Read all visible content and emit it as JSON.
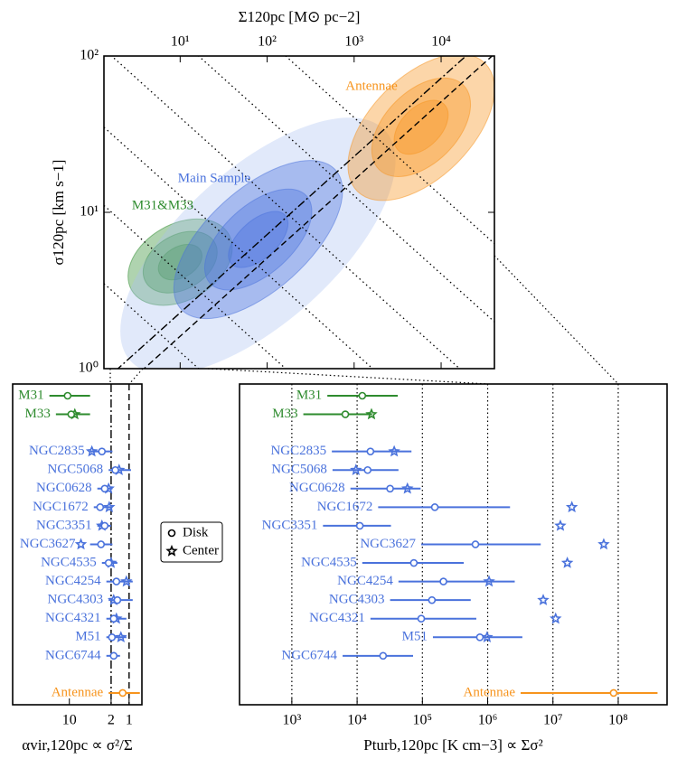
{
  "chart_data": [
    {
      "type": "contour",
      "xlabel": "Σ120pc [M⊙ pc−2]",
      "ylabel": "σ120pc [km s−1]",
      "x_axis_position": "top",
      "xscale": "log",
      "yscale": "log",
      "xlim": [
        1.33,
        41000
      ],
      "ylim": [
        1,
        100
      ],
      "xticks": [
        {
          "value": 10,
          "label": "10¹"
        },
        {
          "value": 100,
          "label": "10²"
        },
        {
          "value": 1000,
          "label": "10³"
        },
        {
          "value": 10000,
          "label": "10⁴"
        }
      ],
      "yticks": [
        {
          "value": 1,
          "label": "10⁰"
        },
        {
          "value": 10,
          "label": "10¹"
        },
        {
          "value": 100,
          "label": "10²"
        }
      ],
      "regions": [
        {
          "color": "#2e8b2e",
          "x": 10,
          "y": 4.8
        },
        {
          "color": "#4a72dc",
          "x": 79,
          "y": 6.7
        },
        {
          "color": "#f7941d",
          "x": 5900,
          "y": 35
        }
      ],
      "annotations": [
        {
          "text": "Antennae",
          "color": "#f7941d"
        },
        {
          "text": "Main Sample",
          "color": "#4a72dc"
        },
        {
          "text": "M31&M33",
          "color": "#2e8b2e"
        }
      ]
    },
    {
      "type": "errorbar",
      "xlabel": "αvir,120pc ∝ σ²/Σ",
      "xscale": "log",
      "xlim": [
        89,
        0.61
      ],
      "xticks": [
        10,
        2,
        1
      ],
      "legend": "right",
      "categories": [
        "M31",
        "M33",
        null,
        "NGC2835",
        "NGC5068",
        "NGC0628",
        "NGC1672",
        "NGC3351",
        "NGC3627",
        "NGC4535",
        "NGC4254",
        "NGC4303",
        "NGC4321",
        "M51",
        "NGC6744",
        null,
        "Antennae"
      ],
      "category_colors": [
        "#2e8b2e",
        "#2e8b2e",
        null,
        "#4a72dc",
        "#4a72dc",
        "#4a72dc",
        "#4a72dc",
        "#4a72dc",
        "#4a72dc",
        "#4a72dc",
        "#4a72dc",
        "#4a72dc",
        "#4a72dc",
        "#4a72dc",
        "#4a72dc",
        null,
        "#f7941d"
      ],
      "series": [
        {
          "name": "Disk",
          "marker": "circle",
          "values": [
            10.7,
            9.3,
            null,
            2.85,
            1.7,
            2.56,
            3.05,
            2.56,
            2.95,
            2.2,
            1.63,
            1.57,
            1.81,
            1.94,
            1.81,
            null,
            1.28
          ],
          "err_low": [
            4.5,
            4.5,
            null,
            1.9,
            0.93,
            1.9,
            1.9,
            2.0,
            1.9,
            1.57,
            0.87,
            0.87,
            1.11,
            1.11,
            1.42,
            null,
            0.66
          ],
          "err_high": [
            21.6,
            16.8,
            null,
            4.5,
            2.2,
            3.4,
            3.9,
            3.4,
            4.5,
            2.85,
            2.4,
            2.2,
            2.4,
            2.4,
            2.4,
            null,
            2.2
          ]
        },
        {
          "name": "Center",
          "marker": "star",
          "values": [
            null,
            8.1,
            null,
            4.2,
            1.47,
            2.2,
            2.15,
            2.85,
            6.4,
            2.0,
            1.11,
            1.81,
            1.63,
            1.37,
            null,
            null,
            null
          ]
        }
      ]
    },
    {
      "type": "errorbar",
      "xlabel": "Pturb,120pc [K cm−3] ∝ Σσ²",
      "xscale": "log",
      "xlim": [
        158,
        560000000
      ],
      "xticks": [
        {
          "value": 1000,
          "label": "10³"
        },
        {
          "value": 10000,
          "label": "10⁴"
        },
        {
          "value": 100000,
          "label": "10⁵"
        },
        {
          "value": 1000000,
          "label": "10⁶"
        },
        {
          "value": 10000000,
          "label": "10⁷"
        },
        {
          "value": 100000000,
          "label": "10⁸"
        }
      ],
      "grid": true,
      "categories": [
        "M31",
        "M33",
        null,
        "NGC2835",
        "NGC5068",
        "NGC0628",
        "NGC1672",
        "NGC3351",
        "NGC3627",
        "NGC4535",
        "NGC4254",
        "NGC4303",
        "NGC4321",
        "M51",
        "NGC6744",
        null,
        "Antennae"
      ],
      "category_colors": [
        "#2e8b2e",
        "#2e8b2e",
        null,
        "#4a72dc",
        "#4a72dc",
        "#4a72dc",
        "#4a72dc",
        "#4a72dc",
        "#4a72dc",
        "#4a72dc",
        "#4a72dc",
        "#4a72dc",
        "#4a72dc",
        "#4a72dc",
        "#4a72dc",
        null,
        "#f7941d"
      ],
      "series": [
        {
          "name": "Disk",
          "marker": "circle",
          "values": [
            12000,
            6600,
            null,
            16000,
            14500,
            32000,
            155000,
            11000,
            650000,
            74000,
            210000,
            140000,
            96000,
            760000,
            25000,
            null,
            85000000
          ],
          "err_low": [
            3500,
            1500,
            null,
            4100,
            4200,
            7900,
            21000,
            3000,
            96000,
            12000,
            43000,
            32000,
            16000,
            145000,
            6000,
            null,
            3200000
          ],
          "err_high": [
            42000,
            17000,
            null,
            68000,
            43000,
            94000,
            2200000,
            33000,
            6500000,
            430000,
            2600000,
            550000,
            670000,
            3400000,
            72000,
            null,
            400000000
          ]
        },
        {
          "name": "Center",
          "marker": "star",
          "values": [
            null,
            16600,
            null,
            37000,
            9600,
            59000,
            19500000,
            13000000,
            60000000,
            16600000,
            1050000,
            7100000,
            11000000,
            980000,
            null,
            null,
            null
          ]
        }
      ]
    }
  ]
}
